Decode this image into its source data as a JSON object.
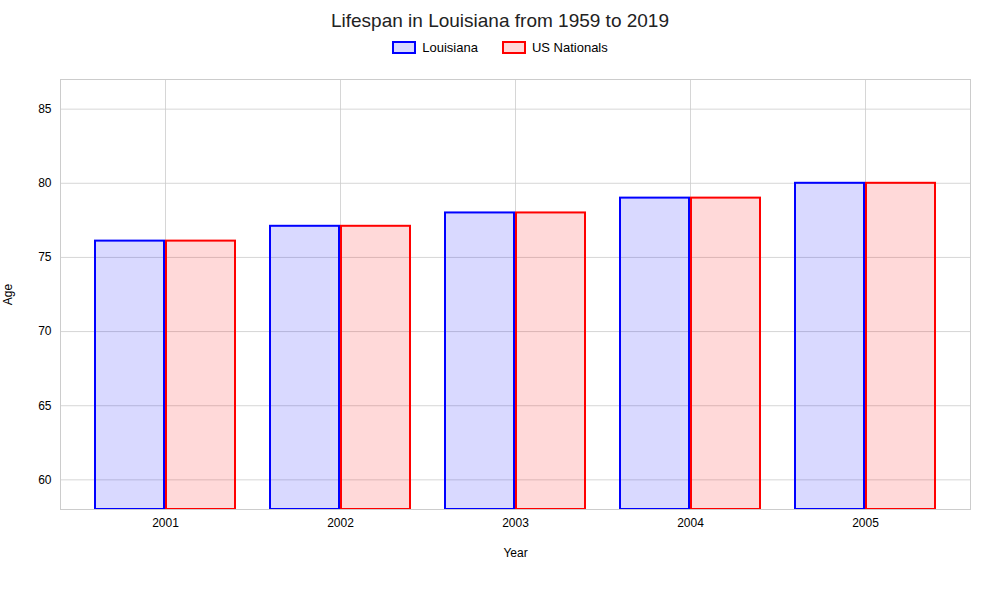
{
  "chart_data": {
    "type": "bar",
    "title": "Lifespan in Louisiana from 1959 to 2019",
    "xlabel": "Year",
    "ylabel": "Age",
    "categories": [
      "2001",
      "2002",
      "2003",
      "2004",
      "2005"
    ],
    "series": [
      {
        "name": "Louisiana",
        "color": "#0000ff",
        "values": [
          76.1,
          77.1,
          78.0,
          79.0,
          80.0
        ]
      },
      {
        "name": "US Nationals",
        "color": "#ff0000",
        "values": [
          76.1,
          77.1,
          78.0,
          79.0,
          80.0
        ]
      }
    ],
    "ylim": [
      58,
      87
    ],
    "yticks": [
      60,
      65,
      70,
      75,
      80,
      85
    ],
    "grid": true,
    "legend": "top"
  }
}
